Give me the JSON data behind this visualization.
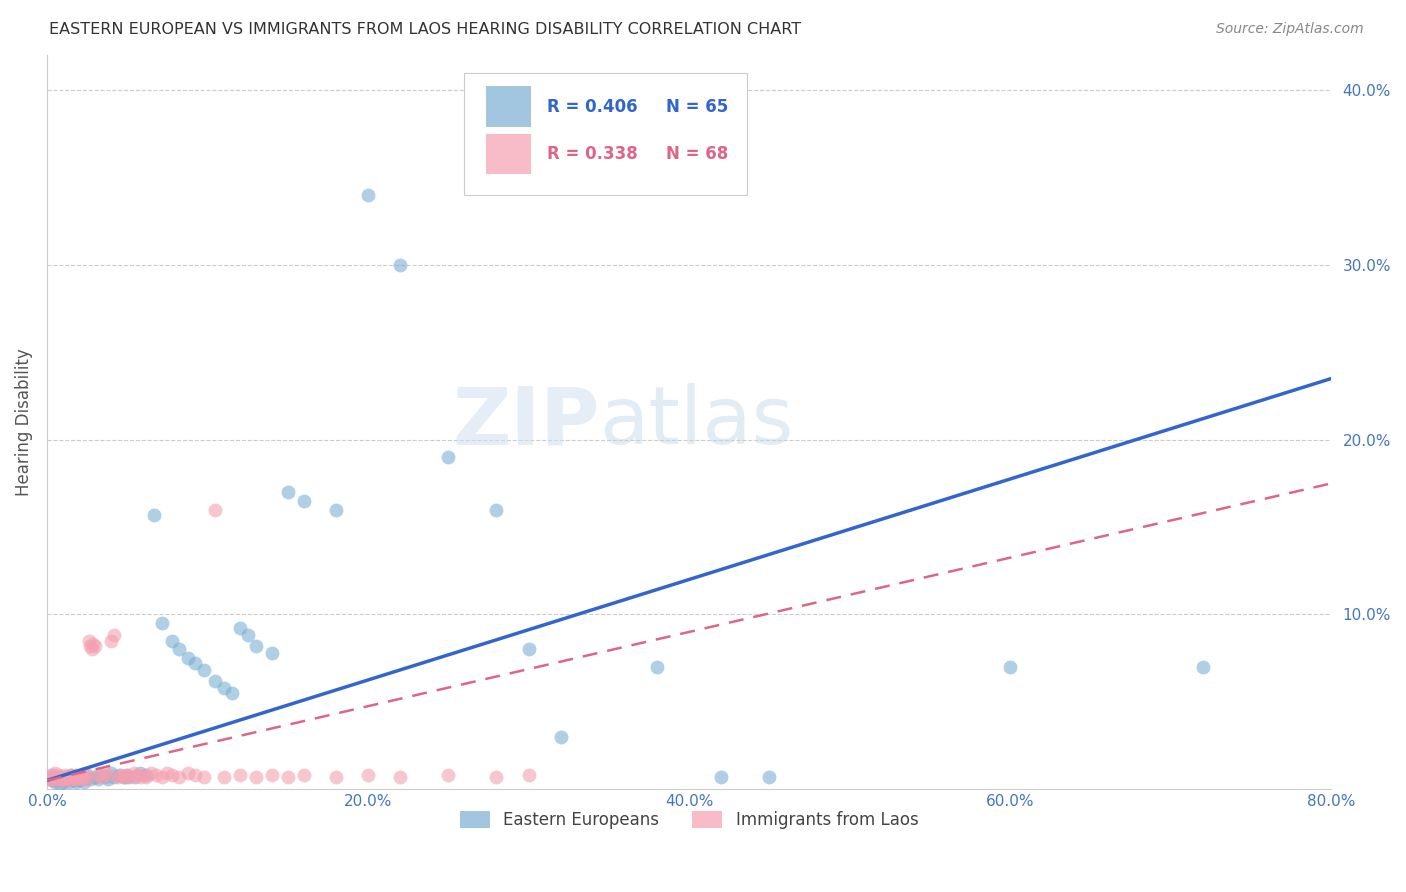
{
  "title": "EASTERN EUROPEAN VS IMMIGRANTS FROM LAOS HEARING DISABILITY CORRELATION CHART",
  "source": "Source: ZipAtlas.com",
  "ylabel": "Hearing Disability",
  "xlim": [
    0.0,
    0.8
  ],
  "ylim": [
    0.0,
    0.42
  ],
  "xticks": [
    0.0,
    0.2,
    0.4,
    0.6,
    0.8
  ],
  "xtick_labels": [
    "0.0%",
    "20.0%",
    "40.0%",
    "60.0%",
    "80.0%"
  ],
  "yticks": [
    0.0,
    0.1,
    0.2,
    0.3,
    0.4
  ],
  "ytick_labels": [
    "",
    "10.0%",
    "20.0%",
    "30.0%",
    "40.0%"
  ],
  "blue_color": "#7BAFD4",
  "pink_color": "#F4A0B0",
  "blue_line_color": "#3366CC",
  "pink_line_color": "#DD6688",
  "watermark_zip": "ZIP",
  "watermark_atlas": "atlas",
  "legend_blue_R": "R = 0.406",
  "legend_blue_N": "N = 65",
  "legend_pink_R": "R = 0.338",
  "legend_pink_N": "N = 68",
  "blue_line_x": [
    0.0,
    0.8
  ],
  "blue_line_y": [
    0.005,
    0.235
  ],
  "pink_line_x": [
    0.0,
    0.8
  ],
  "pink_line_y": [
    0.005,
    0.175
  ],
  "blue_x": [
    0.003,
    0.004,
    0.005,
    0.006,
    0.007,
    0.008,
    0.009,
    0.01,
    0.011,
    0.012,
    0.013,
    0.014,
    0.015,
    0.016,
    0.017,
    0.018,
    0.019,
    0.02,
    0.021,
    0.022,
    0.023,
    0.025,
    0.027,
    0.03,
    0.032,
    0.034,
    0.036,
    0.038,
    0.04,
    0.042,
    0.045,
    0.048,
    0.05,
    0.055,
    0.058,
    0.062,
    0.067,
    0.072,
    0.078,
    0.082,
    0.088,
    0.092,
    0.098,
    0.105,
    0.11,
    0.115,
    0.12,
    0.125,
    0.13,
    0.14,
    0.15,
    0.16,
    0.18,
    0.2,
    0.22,
    0.25,
    0.28,
    0.3,
    0.32,
    0.38,
    0.42,
    0.45,
    0.6,
    0.72,
    0.05
  ],
  "blue_y": [
    0.005,
    0.008,
    0.004,
    0.007,
    0.005,
    0.003,
    0.006,
    0.004,
    0.007,
    0.005,
    0.006,
    0.004,
    0.008,
    0.005,
    0.007,
    0.004,
    0.006,
    0.005,
    0.007,
    0.006,
    0.004,
    0.008,
    0.006,
    0.007,
    0.006,
    0.008,
    0.007,
    0.006,
    0.009,
    0.007,
    0.008,
    0.007,
    0.008,
    0.007,
    0.009,
    0.008,
    0.157,
    0.095,
    0.085,
    0.08,
    0.075,
    0.072,
    0.068,
    0.062,
    0.058,
    0.055,
    0.092,
    0.088,
    0.082,
    0.078,
    0.17,
    0.165,
    0.16,
    0.34,
    0.3,
    0.19,
    0.16,
    0.08,
    0.03,
    0.07,
    0.007,
    0.007,
    0.07,
    0.07,
    0.007
  ],
  "pink_x": [
    0.001,
    0.002,
    0.003,
    0.004,
    0.005,
    0.006,
    0.007,
    0.008,
    0.009,
    0.01,
    0.011,
    0.012,
    0.013,
    0.014,
    0.015,
    0.016,
    0.017,
    0.018,
    0.019,
    0.02,
    0.021,
    0.022,
    0.023,
    0.024,
    0.025,
    0.026,
    0.027,
    0.028,
    0.029,
    0.03,
    0.032,
    0.034,
    0.036,
    0.038,
    0.04,
    0.042,
    0.044,
    0.046,
    0.048,
    0.05,
    0.052,
    0.054,
    0.056,
    0.058,
    0.06,
    0.062,
    0.065,
    0.068,
    0.072,
    0.075,
    0.078,
    0.082,
    0.088,
    0.092,
    0.098,
    0.105,
    0.11,
    0.12,
    0.13,
    0.14,
    0.15,
    0.16,
    0.18,
    0.2,
    0.22,
    0.25,
    0.28,
    0.3
  ],
  "pink_y": [
    0.006,
    0.008,
    0.005,
    0.007,
    0.009,
    0.006,
    0.008,
    0.005,
    0.007,
    0.006,
    0.008,
    0.006,
    0.007,
    0.005,
    0.008,
    0.007,
    0.006,
    0.008,
    0.006,
    0.007,
    0.008,
    0.006,
    0.007,
    0.009,
    0.006,
    0.085,
    0.082,
    0.08,
    0.083,
    0.082,
    0.008,
    0.007,
    0.009,
    0.008,
    0.085,
    0.088,
    0.007,
    0.008,
    0.007,
    0.008,
    0.007,
    0.009,
    0.008,
    0.007,
    0.008,
    0.007,
    0.009,
    0.008,
    0.007,
    0.009,
    0.008,
    0.007,
    0.009,
    0.008,
    0.007,
    0.16,
    0.007,
    0.008,
    0.007,
    0.008,
    0.007,
    0.008,
    0.007,
    0.008,
    0.007,
    0.008,
    0.007,
    0.008
  ]
}
